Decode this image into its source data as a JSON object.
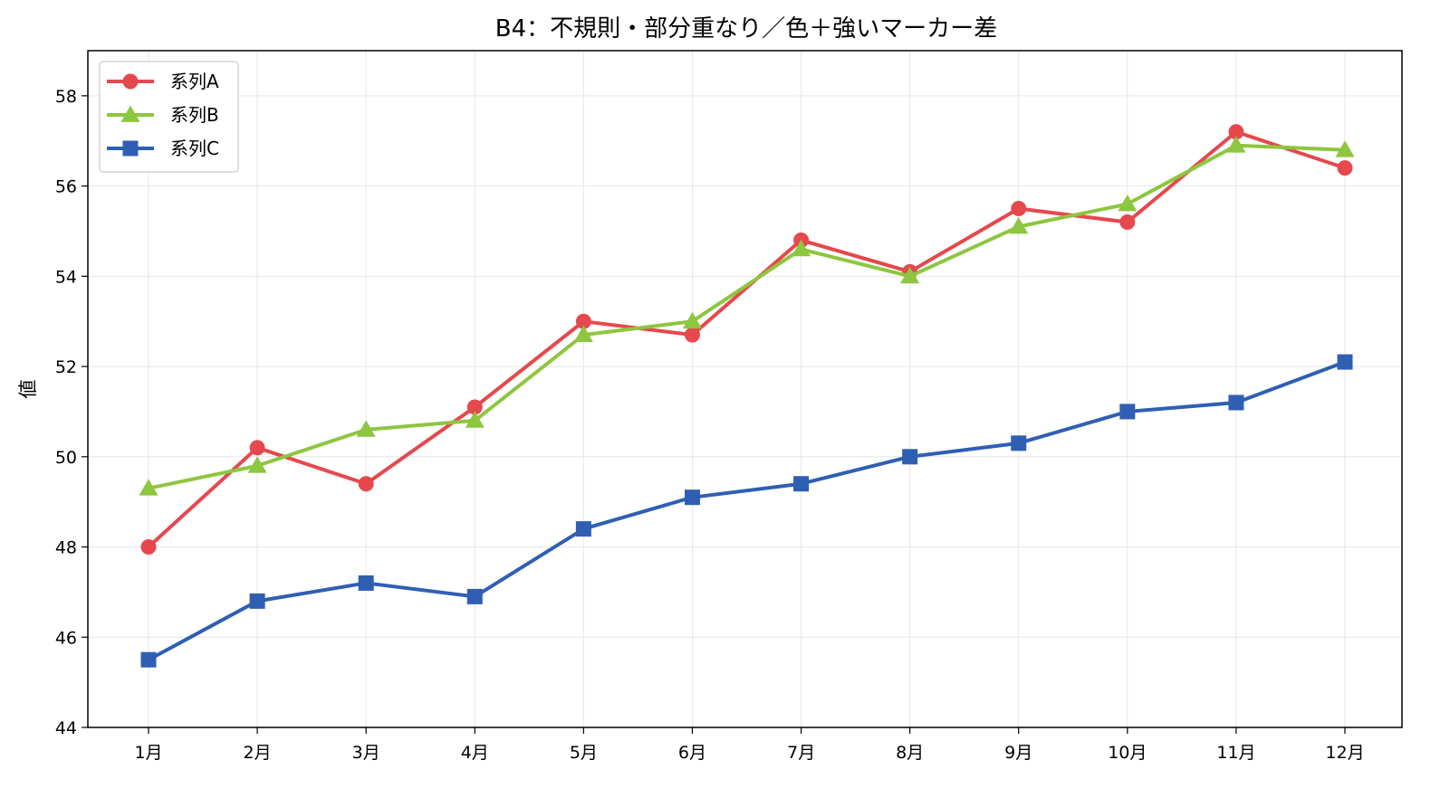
{
  "chart_data": {
    "type": "line",
    "title": "B4：不規則・部分重なり／色＋強いマーカー差",
    "xlabel": "",
    "ylabel": "値",
    "categories": [
      "1月",
      "2月",
      "3月",
      "4月",
      "5月",
      "6月",
      "7月",
      "8月",
      "9月",
      "10月",
      "11月",
      "12月"
    ],
    "ylim": [
      44,
      59
    ],
    "yticks": [
      44,
      46,
      48,
      50,
      52,
      54,
      56,
      58
    ],
    "grid": true,
    "legend_position": "top-left",
    "series": [
      {
        "name": "系列A",
        "color": "#E5484D",
        "marker": "circle",
        "values": [
          48.0,
          50.2,
          49.4,
          51.1,
          53.0,
          52.7,
          54.8,
          54.1,
          55.5,
          55.2,
          57.2,
          56.4
        ]
      },
      {
        "name": "系列B",
        "color": "#8DC63F",
        "marker": "triangle",
        "values": [
          49.3,
          49.8,
          50.6,
          50.8,
          52.7,
          53.0,
          54.6,
          54.0,
          55.1,
          55.6,
          56.9,
          56.8
        ]
      },
      {
        "name": "系列C",
        "color": "#2F5FB3",
        "marker": "square",
        "values": [
          45.5,
          46.8,
          47.2,
          46.9,
          48.4,
          49.1,
          49.4,
          50.0,
          50.3,
          51.0,
          51.2,
          52.1
        ]
      }
    ]
  }
}
